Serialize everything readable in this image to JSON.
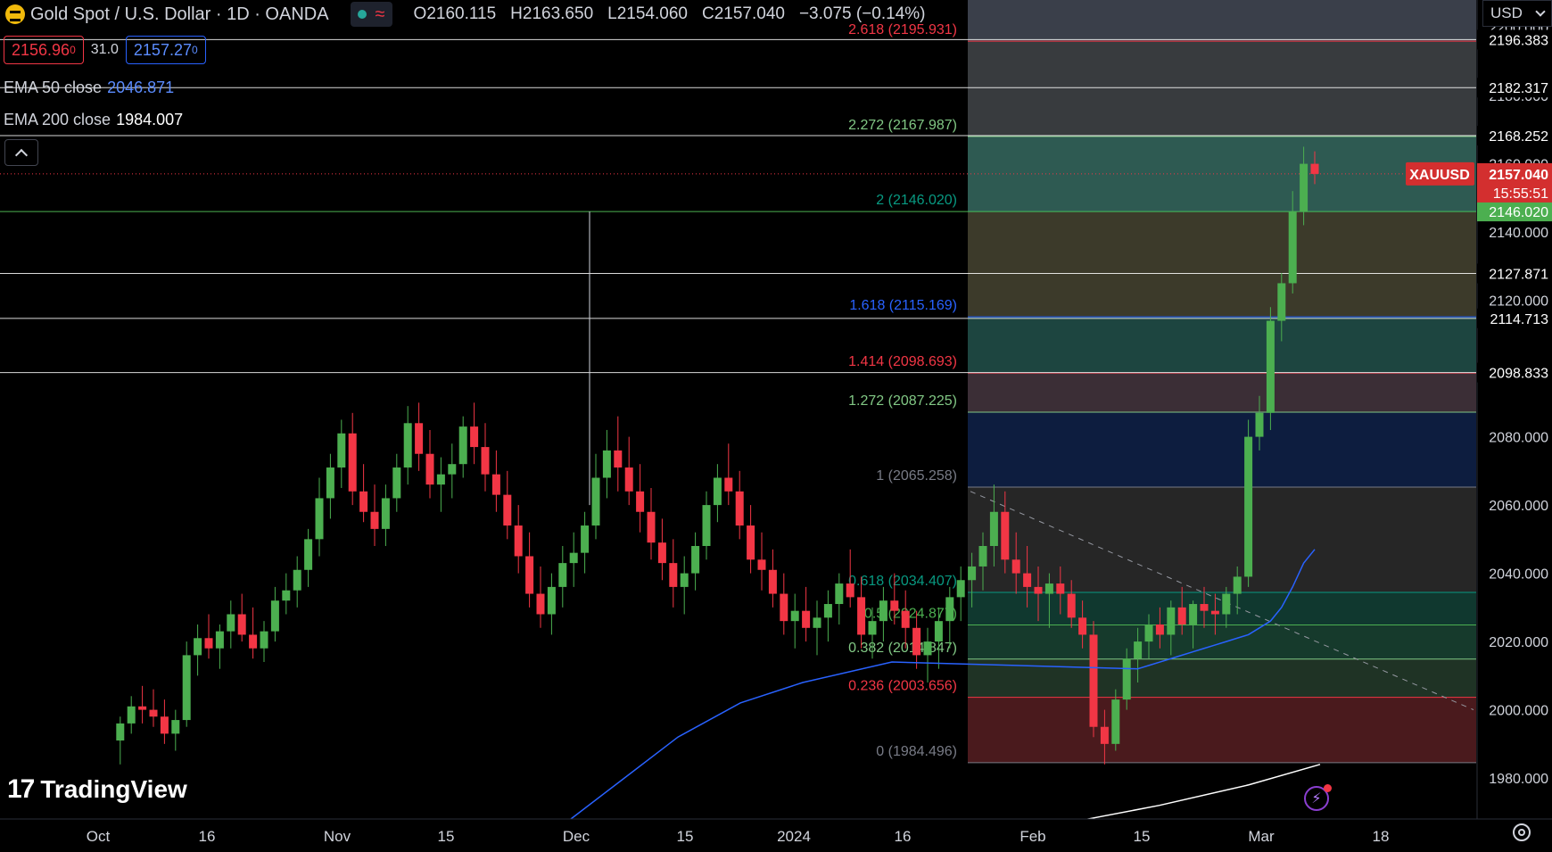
{
  "header": {
    "symbol_title": "Gold Spot / U.S. Dollar · 1D · OANDA",
    "ohlc": [
      {
        "k": "O",
        "v": "2160.115"
      },
      {
        "k": "H",
        "v": "2163.650"
      },
      {
        "k": "L",
        "v": "2154.060"
      },
      {
        "k": "C",
        "v": "2157.040"
      },
      {
        "k": "",
        "v": "−3.075 (−0.14%)"
      }
    ],
    "sell_price": "2156.96",
    "sell_price_small": "0",
    "spread": "31.0",
    "buy_price": "2157.27",
    "buy_price_small": "0"
  },
  "indicators": {
    "ema50_label": "EMA 50 close",
    "ema50_value": "2046.871",
    "ema200_label": "EMA 200 close",
    "ema200_value": "1984.007"
  },
  "currency": "USD",
  "brand": "TradingView",
  "colors": {
    "up": "#4caf50",
    "down": "#f23645",
    "ema50": "#2962ff",
    "ema200": "#ffffff",
    "background": "#000000"
  },
  "chart_data": {
    "type": "candlestick",
    "symbol": "XAUUSD",
    "last_price": "2157.040",
    "countdown": "15:55:51",
    "ylim": [
      1968,
      2208
    ],
    "y_ticks": [
      1980,
      2000,
      2020,
      2040,
      2060,
      2080,
      2100,
      2120,
      2140,
      2160,
      2180,
      2200
    ],
    "x_ticks": [
      "Oct",
      "16",
      "Nov",
      "15",
      "Dec",
      "15",
      "2024",
      "16",
      "Feb",
      "15",
      "Mar",
      "18"
    ],
    "fib_levels": [
      {
        "ratio": "0",
        "price": 1984.496,
        "label": "0 (1984.496)",
        "color": "#787b86"
      },
      {
        "ratio": "0.236",
        "price": 2003.656,
        "label": "0.236 (2003.656)",
        "color": "#f23645"
      },
      {
        "ratio": "0.382",
        "price": 2014.847,
        "label": "0.382 (2014.847)",
        "color": "#81c784"
      },
      {
        "ratio": "0.5",
        "price": 2024.877,
        "label": "0.5 (2024.877)",
        "color": "#4caf50"
      },
      {
        "ratio": "0.618",
        "price": 2034.407,
        "label": "0.618 (2034.407)",
        "color": "#089981"
      },
      {
        "ratio": "1",
        "price": 2065.258,
        "label": "1 (2065.258)",
        "color": "#787b86"
      },
      {
        "ratio": "1.272",
        "price": 2087.225,
        "label": "1.272 (2087.225)",
        "color": "#81c784"
      },
      {
        "ratio": "1.414",
        "price": 2098.693,
        "label": "1.414 (2098.693)",
        "color": "#f23645"
      },
      {
        "ratio": "1.618",
        "price": 2115.169,
        "label": "1.618 (2115.169)",
        "color": "#2962ff"
      },
      {
        "ratio": "2",
        "price": 2146.02,
        "label": "2 (2146.020)",
        "color": "#089981"
      },
      {
        "ratio": "2.272",
        "price": 2167.987,
        "label": "2.272 (2167.987)",
        "color": "#81c784"
      },
      {
        "ratio": "2.618",
        "price": 2195.931,
        "label": "2.618 (2195.931)",
        "color": "#f23645"
      }
    ],
    "horizontal_lines": [
      {
        "price": 2196.383,
        "label": "2196.383",
        "color": "#ffffff"
      },
      {
        "price": 2182.317,
        "label": "2182.317",
        "color": "#ffffff"
      },
      {
        "price": 2168.252,
        "label": "2168.252",
        "color": "#ffffff"
      },
      {
        "price": 2146.02,
        "label": "2146.020",
        "color": "#4caf50"
      },
      {
        "price": 2127.871,
        "label": "2127.871",
        "color": "#ffffff"
      },
      {
        "price": 2114.713,
        "label": "2114.713",
        "color": "#ffffff"
      },
      {
        "price": 2098.833,
        "label": "2098.833",
        "color": "#ffffff"
      }
    ],
    "candles": [
      [
        1991,
        1998,
        1984,
        1996
      ],
      [
        1996,
        2004,
        1993,
        2001
      ],
      [
        2001,
        2007,
        1996,
        2000
      ],
      [
        2000,
        2006,
        1995,
        1998
      ],
      [
        1998,
        2003,
        1990,
        1993
      ],
      [
        1993,
        2000,
        1988,
        1997
      ],
      [
        1997,
        2020,
        1995,
        2016
      ],
      [
        2016,
        2025,
        2010,
        2021
      ],
      [
        2021,
        2028,
        2015,
        2018
      ],
      [
        2018,
        2025,
        2012,
        2023
      ],
      [
        2023,
        2032,
        2018,
        2028
      ],
      [
        2028,
        2034,
        2020,
        2022
      ],
      [
        2022,
        2030,
        2015,
        2018
      ],
      [
        2018,
        2026,
        2014,
        2023
      ],
      [
        2023,
        2036,
        2020,
        2032
      ],
      [
        2032,
        2040,
        2028,
        2035
      ],
      [
        2035,
        2045,
        2030,
        2041
      ],
      [
        2041,
        2053,
        2036,
        2050
      ],
      [
        2050,
        2068,
        2045,
        2062
      ],
      [
        2062,
        2075,
        2056,
        2071
      ],
      [
        2071,
        2085,
        2065,
        2081
      ],
      [
        2081,
        2087,
        2060,
        2064
      ],
      [
        2064,
        2072,
        2055,
        2058
      ],
      [
        2058,
        2066,
        2048,
        2053
      ],
      [
        2053,
        2066,
        2048,
        2062
      ],
      [
        2062,
        2075,
        2058,
        2071
      ],
      [
        2071,
        2089,
        2066,
        2084
      ],
      [
        2084,
        2090,
        2070,
        2075
      ],
      [
        2075,
        2082,
        2062,
        2066
      ],
      [
        2066,
        2074,
        2058,
        2069
      ],
      [
        2069,
        2078,
        2062,
        2072
      ],
      [
        2072,
        2086,
        2068,
        2083
      ],
      [
        2083,
        2090,
        2072,
        2077
      ],
      [
        2077,
        2084,
        2064,
        2069
      ],
      [
        2069,
        2076,
        2058,
        2063
      ],
      [
        2063,
        2070,
        2050,
        2054
      ],
      [
        2054,
        2060,
        2040,
        2045
      ],
      [
        2045,
        2052,
        2030,
        2034
      ],
      [
        2034,
        2042,
        2024,
        2028
      ],
      [
        2028,
        2040,
        2022,
        2036
      ],
      [
        2036,
        2048,
        2030,
        2043
      ],
      [
        2043,
        2052,
        2036,
        2046
      ],
      [
        2046,
        2058,
        2040,
        2054
      ],
      [
        2054,
        2075,
        2050,
        2068
      ],
      [
        2068,
        2082,
        2062,
        2076
      ],
      [
        2076,
        2086,
        2064,
        2071
      ],
      [
        2071,
        2080,
        2060,
        2064
      ],
      [
        2064,
        2072,
        2052,
        2058
      ],
      [
        2058,
        2065,
        2044,
        2049
      ],
      [
        2049,
        2056,
        2038,
        2043
      ],
      [
        2043,
        2050,
        2030,
        2036
      ],
      [
        2036,
        2045,
        2028,
        2040
      ],
      [
        2040,
        2052,
        2035,
        2048
      ],
      [
        2048,
        2064,
        2044,
        2060
      ],
      [
        2060,
        2072,
        2055,
        2068
      ],
      [
        2068,
        2078,
        2060,
        2064
      ],
      [
        2064,
        2070,
        2050,
        2054
      ],
      [
        2054,
        2060,
        2040,
        2044
      ],
      [
        2044,
        2052,
        2035,
        2041
      ],
      [
        2041,
        2047,
        2030,
        2034
      ],
      [
        2034,
        2040,
        2022,
        2026
      ],
      [
        2026,
        2034,
        2018,
        2029
      ],
      [
        2029,
        2036,
        2020,
        2024
      ],
      [
        2024,
        2032,
        2016,
        2027
      ],
      [
        2027,
        2035,
        2020,
        2031
      ],
      [
        2031,
        2040,
        2025,
        2037
      ],
      [
        2037,
        2047,
        2030,
        2033
      ],
      [
        2033,
        2039,
        2018,
        2022
      ],
      [
        2022,
        2030,
        2015,
        2026
      ],
      [
        2026,
        2036,
        2020,
        2032
      ],
      [
        2032,
        2040,
        2025,
        2029
      ],
      [
        2029,
        2035,
        2018,
        2024
      ],
      [
        2024,
        2029,
        2012,
        2016
      ],
      [
        2016,
        2024,
        2008,
        2020
      ],
      [
        2020,
        2030,
        2012,
        2026
      ],
      [
        2026,
        2036,
        2018,
        2033
      ],
      [
        2033,
        2042,
        2026,
        2038
      ],
      [
        2038,
        2046,
        2030,
        2042
      ],
      [
        2042,
        2052,
        2035,
        2048
      ],
      [
        2048,
        2066,
        2042,
        2058
      ],
      [
        2058,
        2064,
        2040,
        2044
      ],
      [
        2044,
        2052,
        2034,
        2040
      ],
      [
        2040,
        2048,
        2030,
        2036
      ],
      [
        2036,
        2042,
        2026,
        2034
      ],
      [
        2034,
        2040,
        2024,
        2037
      ],
      [
        2037,
        2042,
        2028,
        2034
      ],
      [
        2034,
        2038,
        2024,
        2027
      ],
      [
        2027,
        2032,
        2018,
        2022
      ],
      [
        2022,
        2026,
        1992,
        1995
      ],
      [
        1995,
        2000,
        1984,
        1990
      ],
      [
        1990,
        2006,
        1988,
        2003
      ],
      [
        2003,
        2018,
        2000,
        2015
      ],
      [
        2015,
        2024,
        2008,
        2020
      ],
      [
        2020,
        2028,
        2015,
        2025
      ],
      [
        2025,
        2030,
        2018,
        2022
      ],
      [
        2022,
        2032,
        2016,
        2030
      ],
      [
        2030,
        2036,
        2022,
        2025
      ],
      [
        2025,
        2032,
        2018,
        2031
      ],
      [
        2031,
        2036,
        2024,
        2029
      ],
      [
        2029,
        2034,
        2022,
        2028
      ],
      [
        2028,
        2036,
        2024,
        2034
      ],
      [
        2034,
        2042,
        2028,
        2039
      ],
      [
        2039,
        2085,
        2036,
        2080
      ],
      [
        2080,
        2092,
        2076,
        2087
      ],
      [
        2087,
        2118,
        2082,
        2114
      ],
      [
        2114,
        2128,
        2108,
        2125
      ],
      [
        2125,
        2152,
        2122,
        2146
      ],
      [
        2146,
        2165,
        2142,
        2160
      ],
      [
        2160,
        2163.65,
        2154.06,
        2157.04
      ]
    ],
    "ema50_tail": [
      2012,
      2013,
      2014,
      2015,
      2016,
      2017,
      2018,
      2019,
      2020,
      2021,
      2022,
      2024,
      2026,
      2030,
      2036,
      2043,
      2047
    ]
  }
}
